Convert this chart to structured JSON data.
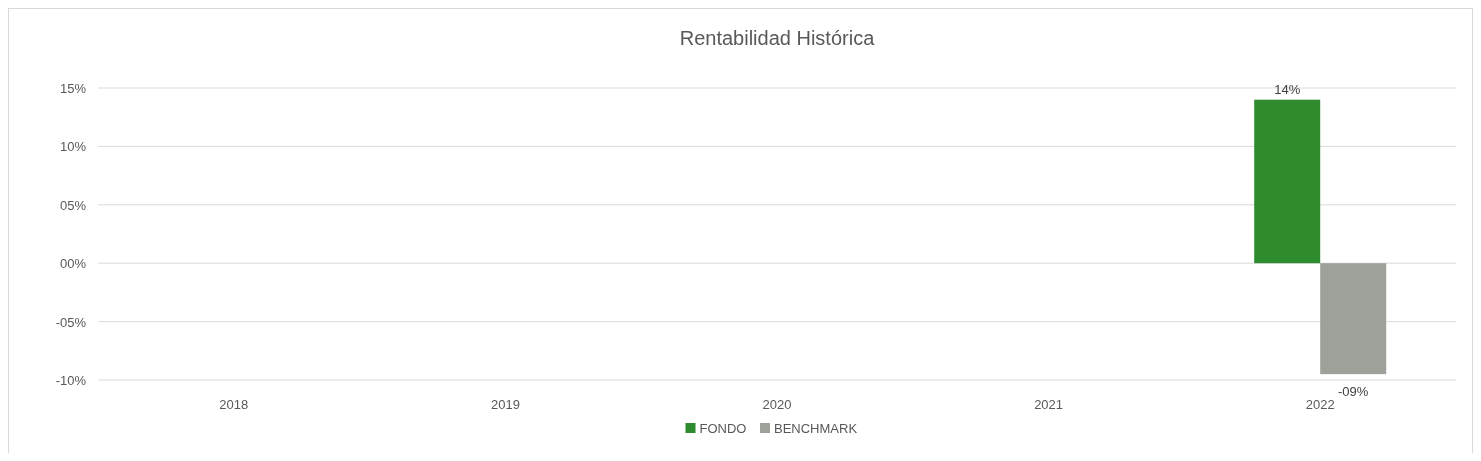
{
  "chart_data": {
    "type": "bar",
    "title": "Rentabilidad Histórica",
    "categories": [
      "2018",
      "2019",
      "2020",
      "2021",
      "2022"
    ],
    "series": [
      {
        "name": "FONDO",
        "color": "#2e8b2e",
        "values": [
          null,
          null,
          null,
          null,
          14
        ],
        "value_labels": [
          null,
          null,
          null,
          null,
          "14%"
        ]
      },
      {
        "name": "BENCHMARK",
        "color": "#9ca19a",
        "values": [
          null,
          null,
          null,
          null,
          -9.5
        ],
        "value_labels": [
          null,
          null,
          null,
          null,
          "-09%"
        ]
      }
    ],
    "ylim": [
      -10,
      15
    ],
    "yticks": [
      {
        "value": 15,
        "label": "15%"
      },
      {
        "value": 10,
        "label": "10%"
      },
      {
        "value": 5,
        "label": "05%"
      },
      {
        "value": 0,
        "label": "00%"
      },
      {
        "value": -5,
        "label": "-05%"
      },
      {
        "value": -10,
        "label": "-10%"
      }
    ],
    "grid": "y",
    "legend": "bottom"
  }
}
